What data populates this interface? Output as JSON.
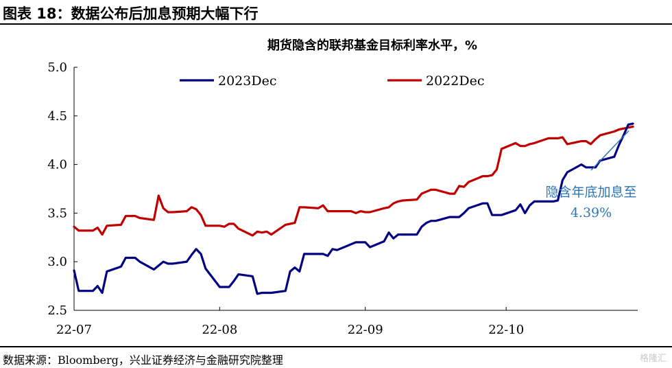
{
  "figure": {
    "title": "图表 18：数据公布后加息预期大幅下行",
    "source": "数据来源：Bloomberg，兴业证券经济与金融研究院整理",
    "watermark": "格隆汇"
  },
  "chart_data": {
    "type": "line",
    "title": "期货隐含的联邦基金目标利率水平，%",
    "xlabel": "",
    "ylabel": "",
    "ylim": [
      2.5,
      5.0
    ],
    "yticks": [
      "5.0",
      "4.5",
      "4.0",
      "3.5",
      "3.0",
      "2.5"
    ],
    "x_tick_labels": [
      "22-07",
      "22-08",
      "22-09",
      "22-10"
    ],
    "x_range": [
      "2022-07-01",
      "2022-10-28"
    ],
    "x_ticks": [
      "2022-07-01",
      "2022-08-01",
      "2022-09-01",
      "2022-10-01"
    ],
    "grid": false,
    "legend_position": "top",
    "annotation": {
      "text_line1": "隐含年底加息至",
      "text_line2": "4.39%",
      "color": "#2e75b6",
      "point_date": "2022-10-28",
      "point_value": 4.39
    },
    "series": [
      {
        "name": "2023Dec",
        "color": "#000080",
        "points": [
          [
            "2022-07-01",
            2.91
          ],
          [
            "2022-07-02",
            2.7
          ],
          [
            "2022-07-05",
            2.7
          ],
          [
            "2022-07-06",
            2.75
          ],
          [
            "2022-07-07",
            2.68
          ],
          [
            "2022-07-08",
            2.9
          ],
          [
            "2022-07-11",
            2.95
          ],
          [
            "2022-07-12",
            3.04
          ],
          [
            "2022-07-13",
            3.04
          ],
          [
            "2022-07-14",
            3.04
          ],
          [
            "2022-07-15",
            3.0
          ],
          [
            "2022-07-18",
            2.92
          ],
          [
            "2022-07-19",
            2.96
          ],
          [
            "2022-07-20",
            3.0
          ],
          [
            "2022-07-21",
            2.98
          ],
          [
            "2022-07-22",
            2.98
          ],
          [
            "2022-07-25",
            3.0
          ],
          [
            "2022-07-26",
            3.07
          ],
          [
            "2022-07-27",
            3.13
          ],
          [
            "2022-07-28",
            3.08
          ],
          [
            "2022-07-29",
            2.93
          ],
          [
            "2022-08-01",
            2.74
          ],
          [
            "2022-08-02",
            2.74
          ],
          [
            "2022-08-03",
            2.74
          ],
          [
            "2022-08-04",
            2.8
          ],
          [
            "2022-08-05",
            2.87
          ],
          [
            "2022-08-08",
            2.85
          ],
          [
            "2022-08-09",
            2.67
          ],
          [
            "2022-08-10",
            2.68
          ],
          [
            "2022-08-11",
            2.68
          ],
          [
            "2022-08-12",
            2.68
          ],
          [
            "2022-08-15",
            2.7
          ],
          [
            "2022-08-16",
            2.9
          ],
          [
            "2022-08-17",
            2.94
          ],
          [
            "2022-08-18",
            2.9
          ],
          [
            "2022-08-19",
            3.08
          ],
          [
            "2022-08-22",
            3.08
          ],
          [
            "2022-08-23",
            3.08
          ],
          [
            "2022-08-24",
            3.06
          ],
          [
            "2022-08-25",
            3.13
          ],
          [
            "2022-08-26",
            3.12
          ],
          [
            "2022-08-29",
            3.18
          ],
          [
            "2022-08-30",
            3.2
          ],
          [
            "2022-08-31",
            3.2
          ],
          [
            "2022-09-01",
            3.2
          ],
          [
            "2022-09-02",
            3.15
          ],
          [
            "2022-09-05",
            3.21
          ],
          [
            "2022-09-06",
            3.3
          ],
          [
            "2022-09-07",
            3.24
          ],
          [
            "2022-09-08",
            3.28
          ],
          [
            "2022-09-09",
            3.28
          ],
          [
            "2022-09-12",
            3.28
          ],
          [
            "2022-09-13",
            3.36
          ],
          [
            "2022-09-14",
            3.4
          ],
          [
            "2022-09-15",
            3.42
          ],
          [
            "2022-09-16",
            3.42
          ],
          [
            "2022-09-19",
            3.46
          ],
          [
            "2022-09-20",
            3.46
          ],
          [
            "2022-09-21",
            3.46
          ],
          [
            "2022-09-22",
            3.5
          ],
          [
            "2022-09-23",
            3.55
          ],
          [
            "2022-09-26",
            3.6
          ],
          [
            "2022-09-27",
            3.6
          ],
          [
            "2022-09-28",
            3.48
          ],
          [
            "2022-09-29",
            3.48
          ],
          [
            "2022-09-30",
            3.48
          ],
          [
            "2022-10-03",
            3.53
          ],
          [
            "2022-10-04",
            3.59
          ],
          [
            "2022-10-05",
            3.5
          ],
          [
            "2022-10-06",
            3.58
          ],
          [
            "2022-10-07",
            3.62
          ],
          [
            "2022-10-10",
            3.62
          ],
          [
            "2022-10-11",
            3.62
          ],
          [
            "2022-10-12",
            3.63
          ],
          [
            "2022-10-13",
            3.84
          ],
          [
            "2022-10-14",
            3.92
          ],
          [
            "2022-10-17",
            4.0
          ],
          [
            "2022-10-18",
            3.97
          ],
          [
            "2022-10-19",
            3.97
          ],
          [
            "2022-10-20",
            3.97
          ],
          [
            "2022-10-21",
            4.04
          ],
          [
            "2022-10-24",
            4.08
          ],
          [
            "2022-10-25",
            4.2
          ],
          [
            "2022-10-26",
            4.3
          ],
          [
            "2022-10-27",
            4.41
          ],
          [
            "2022-10-28",
            4.42
          ]
        ]
      },
      {
        "name": "2022Dec",
        "color": "#c00000",
        "points": [
          [
            "2022-07-01",
            3.36
          ],
          [
            "2022-07-02",
            3.32
          ],
          [
            "2022-07-05",
            3.32
          ],
          [
            "2022-07-06",
            3.35
          ],
          [
            "2022-07-07",
            3.28
          ],
          [
            "2022-07-08",
            3.37
          ],
          [
            "2022-07-11",
            3.38
          ],
          [
            "2022-07-12",
            3.47
          ],
          [
            "2022-07-13",
            3.47
          ],
          [
            "2022-07-14",
            3.47
          ],
          [
            "2022-07-15",
            3.45
          ],
          [
            "2022-07-18",
            3.43
          ],
          [
            "2022-07-19",
            3.68
          ],
          [
            "2022-07-20",
            3.55
          ],
          [
            "2022-07-21",
            3.51
          ],
          [
            "2022-07-22",
            3.51
          ],
          [
            "2022-07-25",
            3.52
          ],
          [
            "2022-07-26",
            3.56
          ],
          [
            "2022-07-27",
            3.54
          ],
          [
            "2022-07-28",
            3.48
          ],
          [
            "2022-07-29",
            3.37
          ],
          [
            "2022-08-01",
            3.37
          ],
          [
            "2022-08-02",
            3.36
          ],
          [
            "2022-08-03",
            3.39
          ],
          [
            "2022-08-04",
            3.39
          ],
          [
            "2022-08-05",
            3.34
          ],
          [
            "2022-08-08",
            3.27
          ],
          [
            "2022-08-09",
            3.31
          ],
          [
            "2022-08-10",
            3.3
          ],
          [
            "2022-08-11",
            3.31
          ],
          [
            "2022-08-12",
            3.28
          ],
          [
            "2022-08-15",
            3.38
          ],
          [
            "2022-08-16",
            3.39
          ],
          [
            "2022-08-17",
            3.4
          ],
          [
            "2022-08-18",
            3.56
          ],
          [
            "2022-08-19",
            3.56
          ],
          [
            "2022-08-22",
            3.55
          ],
          [
            "2022-08-23",
            3.58
          ],
          [
            "2022-08-24",
            3.52
          ],
          [
            "2022-08-25",
            3.52
          ],
          [
            "2022-08-26",
            3.52
          ],
          [
            "2022-08-29",
            3.52
          ],
          [
            "2022-08-30",
            3.5
          ],
          [
            "2022-08-31",
            3.52
          ],
          [
            "2022-09-01",
            3.51
          ],
          [
            "2022-09-02",
            3.51
          ],
          [
            "2022-09-05",
            3.55
          ],
          [
            "2022-09-06",
            3.56
          ],
          [
            "2022-09-07",
            3.6
          ],
          [
            "2022-09-08",
            3.62
          ],
          [
            "2022-09-09",
            3.63
          ],
          [
            "2022-09-12",
            3.64
          ],
          [
            "2022-09-13",
            3.7
          ],
          [
            "2022-09-14",
            3.72
          ],
          [
            "2022-09-15",
            3.74
          ],
          [
            "2022-09-16",
            3.74
          ],
          [
            "2022-09-19",
            3.7
          ],
          [
            "2022-09-20",
            3.7
          ],
          [
            "2022-09-21",
            3.78
          ],
          [
            "2022-09-22",
            3.77
          ],
          [
            "2022-09-23",
            3.82
          ],
          [
            "2022-09-26",
            3.88
          ],
          [
            "2022-09-27",
            3.88
          ],
          [
            "2022-09-28",
            3.89
          ],
          [
            "2022-09-29",
            3.95
          ],
          [
            "2022-09-30",
            4.16
          ],
          [
            "2022-10-03",
            4.22
          ],
          [
            "2022-10-04",
            4.19
          ],
          [
            "2022-10-05",
            4.19
          ],
          [
            "2022-10-06",
            4.21
          ],
          [
            "2022-10-07",
            4.22
          ],
          [
            "2022-10-10",
            4.27
          ],
          [
            "2022-10-11",
            4.27
          ],
          [
            "2022-10-12",
            4.27
          ],
          [
            "2022-10-13",
            4.28
          ],
          [
            "2022-10-14",
            4.21
          ],
          [
            "2022-10-17",
            4.24
          ],
          [
            "2022-10-18",
            4.24
          ],
          [
            "2022-10-19",
            4.21
          ],
          [
            "2022-10-20",
            4.26
          ],
          [
            "2022-10-21",
            4.3
          ],
          [
            "2022-10-24",
            4.34
          ],
          [
            "2022-10-25",
            4.36
          ],
          [
            "2022-10-26",
            4.37
          ],
          [
            "2022-10-27",
            4.38
          ],
          [
            "2022-10-28",
            4.39
          ]
        ]
      }
    ]
  }
}
